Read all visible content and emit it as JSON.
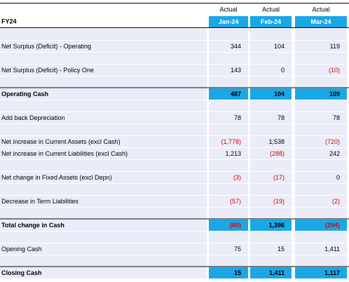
{
  "header": {
    "actual_labels": [
      "Actual",
      "Actual",
      "Actual"
    ],
    "title": "FY24",
    "months": [
      "Jan-24",
      "Feb-24",
      "Mar-24"
    ]
  },
  "rows": [
    {
      "label": "Net Surplus (Deficit) - Operating",
      "values": [
        "344",
        "104",
        "119"
      ]
    },
    {
      "label": "Net Surplus (Deficit) - Policy One",
      "values": [
        "143",
        "0",
        "(10)"
      ]
    },
    {
      "label": "Operating Cash",
      "values": [
        "487",
        "104",
        "109"
      ]
    },
    {
      "label": "Add back Depreciation",
      "values": [
        "78",
        "78",
        "78"
      ]
    },
    {
      "label": "Net increase in Current Assets (excl Cash)",
      "values": [
        "(1,778)",
        "1,538",
        "(720)"
      ]
    },
    {
      "label": "Net increase in Current Liabilities (excl Cash)",
      "values": [
        "1,213",
        "(288)",
        "242"
      ]
    },
    {
      "label": "Net change in Fixed Assets (excl Depn)",
      "values": [
        "(3)",
        "(17)",
        "0"
      ]
    },
    {
      "label": "Decrease in Term Liabilities",
      "values": [
        "(57)",
        "(19)",
        "(2)"
      ]
    },
    {
      "label": "Total change in Cash",
      "values": [
        "(60)",
        "1,396",
        "(294)"
      ]
    },
    {
      "label": "Opening Cash",
      "values": [
        "75",
        "15",
        "1,411"
      ]
    },
    {
      "label": "Closing Cash",
      "values": [
        "15",
        "1,411",
        "1,117"
      ]
    }
  ]
}
